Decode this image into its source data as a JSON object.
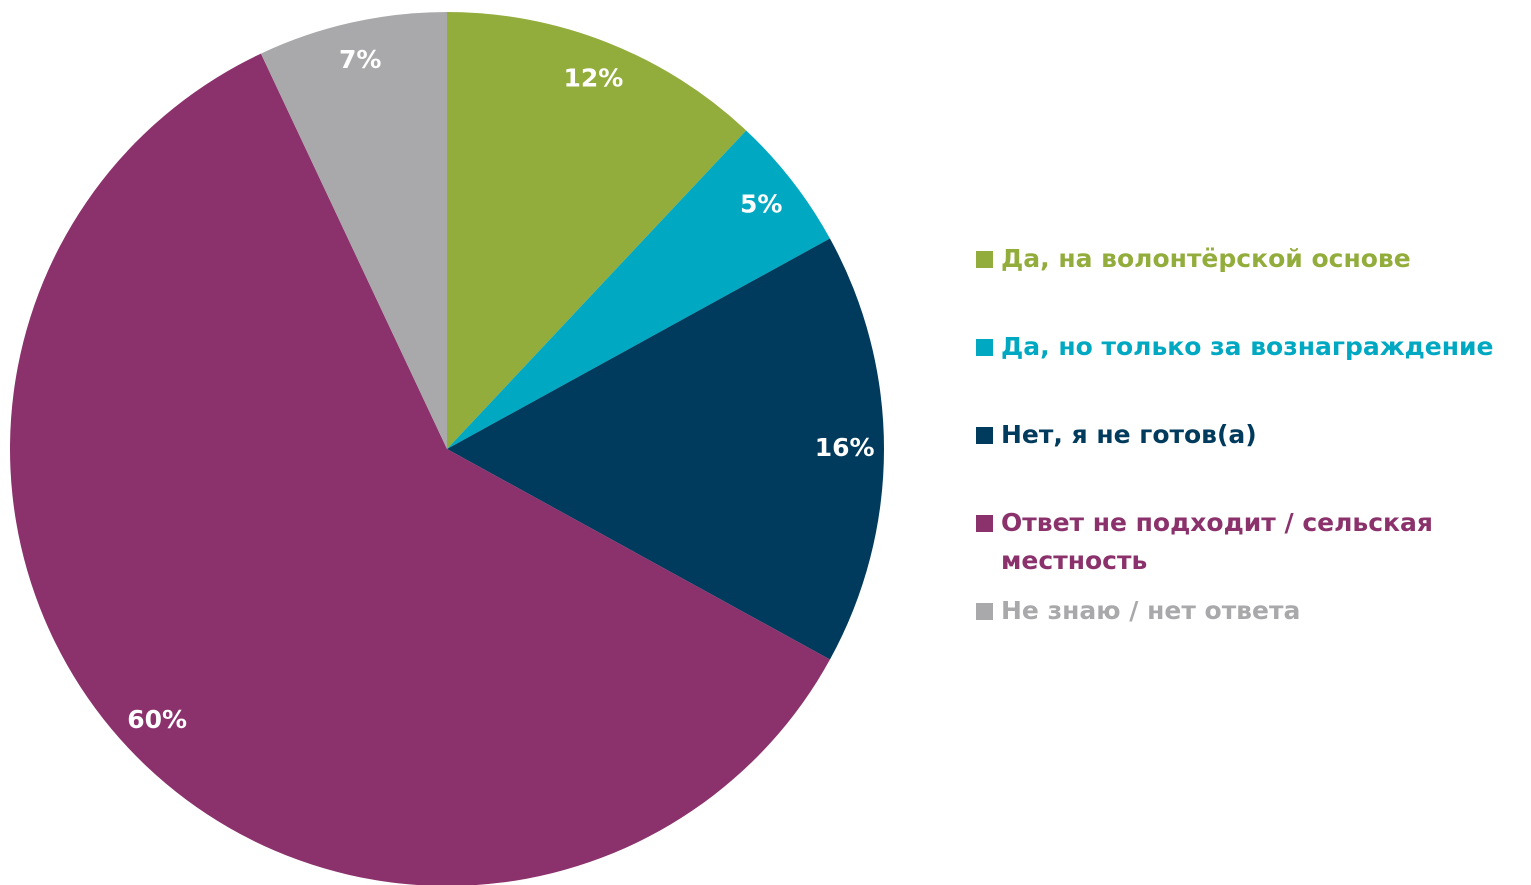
{
  "chart_data": {
    "type": "pie",
    "categories": [
      "Да, на волонтёрской основе",
      "Да, но только за вознаграждение",
      "Нет, я не готов(а)",
      "Ответ не подходит / сельская местность",
      "Не знаю / нет ответа"
    ],
    "values": [
      12,
      5,
      16,
      60,
      7
    ],
    "value_labels": [
      "12%",
      "5%",
      "16%",
      "60%",
      "7%"
    ],
    "colors": [
      "#93ad3c",
      "#00a8c2",
      "#003a5c",
      "#8b316b",
      "#a9a9ab"
    ],
    "legend": "right"
  }
}
